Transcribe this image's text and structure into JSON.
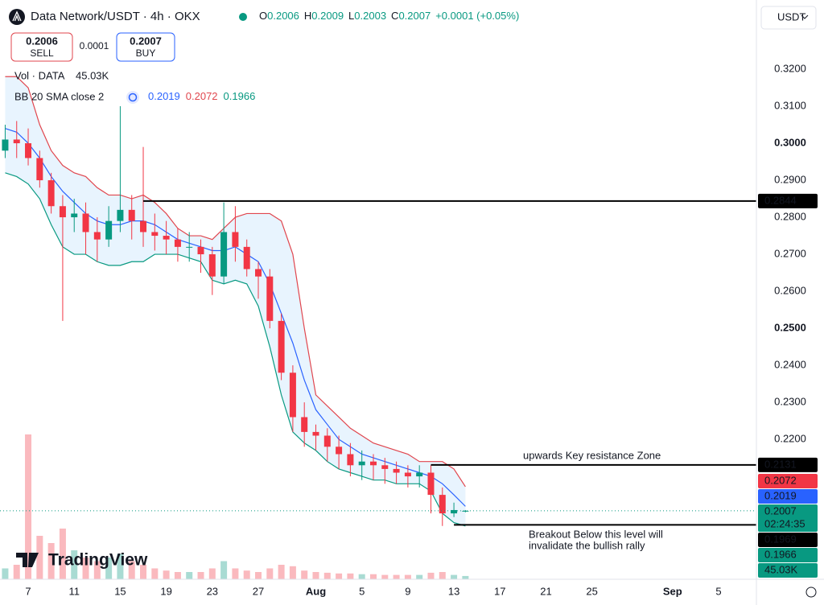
{
  "header": {
    "title": "Data Network/USDT · 4h · OKX",
    "ohlc": [
      {
        "label": "O",
        "value": 0.2006
      },
      {
        "label": "H",
        "value": 0.2009
      },
      {
        "label": "L",
        "value": 0.2003
      },
      {
        "label": "C",
        "value": 0.2007
      }
    ],
    "change": "+0.0001 (+0.05%)",
    "sell": {
      "price": 0.2006,
      "label": "SELL"
    },
    "spread": 0.0001,
    "buy": {
      "price": 0.2007,
      "label": "BUY"
    },
    "volume": {
      "label": "Vol · DATA",
      "value": "45.03K"
    },
    "bb": {
      "label": "BB 20 SMA close 2",
      "values": [
        {
          "value": 0.2019,
          "color": "#2962ff"
        },
        {
          "value": 0.2072,
          "color": "#e0464e"
        },
        {
          "value": 0.1966,
          "color": "#089981"
        }
      ]
    },
    "currency": "USDT",
    "logo": "TradingView"
  },
  "chart_data": {
    "type": "candlestick",
    "x": [
      5,
      6,
      7,
      8,
      9,
      10,
      11,
      12,
      13,
      14,
      15,
      16,
      17,
      18,
      19,
      20,
      21,
      22,
      23,
      24,
      25,
      26,
      27,
      28,
      29,
      30,
      31,
      32,
      33,
      34,
      35,
      36,
      37,
      38,
      39,
      40,
      41,
      42,
      43,
      44,
      45
    ],
    "open": [
      0.298,
      0.301,
      0.3,
      0.296,
      0.29,
      0.283,
      0.28,
      0.281,
      0.276,
      0.274,
      0.279,
      0.282,
      0.279,
      0.276,
      0.275,
      0.274,
      0.272,
      0.272,
      0.27,
      0.264,
      0.276,
      0.272,
      0.266,
      0.264,
      0.252,
      0.238,
      0.226,
      0.222,
      0.221,
      0.218,
      0.216,
      0.213,
      0.214,
      0.213,
      0.212,
      0.211,
      0.21,
      0.211,
      0.205,
      0.2,
      0.2006
    ],
    "high": [
      0.305,
      0.306,
      0.304,
      0.298,
      0.292,
      0.286,
      0.285,
      0.284,
      0.28,
      0.283,
      0.31,
      0.286,
      0.299,
      0.281,
      0.279,
      0.277,
      0.276,
      0.274,
      0.272,
      0.284,
      0.283,
      0.274,
      0.268,
      0.266,
      0.254,
      0.24,
      0.23,
      0.224,
      0.223,
      0.221,
      0.219,
      0.217,
      0.216,
      0.215,
      0.214,
      0.213,
      0.213,
      0.213,
      0.207,
      0.2029,
      0.2009
    ],
    "low": [
      0.296,
      0.296,
      0.294,
      0.288,
      0.281,
      0.252,
      0.276,
      0.27,
      0.268,
      0.272,
      0.276,
      0.274,
      0.272,
      0.271,
      0.27,
      0.268,
      0.268,
      0.265,
      0.259,
      0.262,
      0.268,
      0.264,
      0.258,
      0.25,
      0.236,
      0.222,
      0.218,
      0.217,
      0.214,
      0.212,
      0.21,
      0.209,
      0.209,
      0.208,
      0.208,
      0.207,
      0.207,
      0.2,
      0.1966,
      0.199,
      0.2003
    ],
    "close": [
      0.301,
      0.3,
      0.296,
      0.29,
      0.283,
      0.28,
      0.281,
      0.276,
      0.274,
      0.279,
      0.282,
      0.279,
      0.276,
      0.275,
      0.274,
      0.272,
      0.272,
      0.27,
      0.264,
      0.276,
      0.272,
      0.266,
      0.264,
      0.252,
      0.238,
      0.226,
      0.222,
      0.221,
      0.218,
      0.216,
      0.213,
      0.214,
      0.213,
      0.212,
      0.211,
      0.21,
      0.211,
      0.205,
      0.2,
      0.2009,
      0.2007
    ],
    "volume": [
      150000,
      200000,
      2000000,
      600000,
      500000,
      700000,
      400000,
      300000,
      250000,
      300000,
      350000,
      250000,
      200000,
      150000,
      120000,
      100000,
      100000,
      100000,
      150000,
      250000,
      150000,
      120000,
      100000,
      150000,
      200000,
      180000,
      120000,
      100000,
      90000,
      80000,
      80000,
      70000,
      70000,
      60000,
      60000,
      60000,
      60000,
      90000,
      100000,
      60000,
      45030
    ],
    "up_color": "#089981",
    "down_color": "#f23645",
    "bands": [
      {
        "color": "#e0464e",
        "values": [
          0.318,
          0.318,
          0.315,
          0.305,
          0.298,
          0.294,
          0.292,
          0.291,
          0.288,
          0.286,
          0.286,
          0.285,
          0.286,
          0.284,
          0.281,
          0.277,
          0.275,
          0.275,
          0.274,
          0.277,
          0.28,
          0.281,
          0.281,
          0.281,
          0.279,
          0.27,
          0.25,
          0.232,
          0.229,
          0.226,
          0.223,
          0.221,
          0.219,
          0.218,
          0.217,
          0.216,
          0.214,
          0.214,
          0.214,
          0.212,
          0.2072
        ]
      },
      {
        "color": "#2962ff",
        "values": [
          0.304,
          0.303,
          0.3,
          0.296,
          0.291,
          0.287,
          0.284,
          0.281,
          0.279,
          0.278,
          0.278,
          0.279,
          0.279,
          0.278,
          0.276,
          0.274,
          0.273,
          0.272,
          0.271,
          0.271,
          0.272,
          0.27,
          0.268,
          0.262,
          0.254,
          0.246,
          0.236,
          0.228,
          0.224,
          0.22,
          0.218,
          0.216,
          0.215,
          0.214,
          0.213,
          0.212,
          0.211,
          0.21,
          0.208,
          0.205,
          0.2019
        ]
      },
      {
        "color": "#089981",
        "values": [
          0.292,
          0.291,
          0.289,
          0.285,
          0.278,
          0.272,
          0.27,
          0.27,
          0.268,
          0.267,
          0.267,
          0.268,
          0.268,
          0.27,
          0.27,
          0.27,
          0.269,
          0.268,
          0.263,
          0.262,
          0.263,
          0.262,
          0.256,
          0.245,
          0.232,
          0.222,
          0.219,
          0.217,
          0.214,
          0.212,
          0.211,
          0.21,
          0.209,
          0.209,
          0.208,
          0.208,
          0.208,
          0.206,
          0.2,
          0.1975,
          0.1966
        ]
      }
    ],
    "band_fill": "#2196f3",
    "xlim": [
      4.55,
      70.29
    ],
    "ylim": [
      0.1822,
      0.3387
    ],
    "xticks": [
      7,
      11,
      15,
      19,
      23,
      27,
      {
        "value": 32,
        "label": "Aug",
        "bold": true
      },
      {
        "value": 36,
        "label": "5"
      },
      {
        "value": 40,
        "label": "9"
      },
      {
        "value": 44,
        "label": "13"
      },
      {
        "value": 48,
        "label": "17"
      },
      {
        "value": 52,
        "label": "21"
      },
      {
        "value": 56,
        "label": "25"
      },
      {
        "value": 63,
        "label": "Sep",
        "bold": true
      },
      {
        "value": 67,
        "label": "5"
      }
    ],
    "yticks": [
      {
        "value": 0.22,
        "label": "0.2200"
      },
      {
        "value": 0.23,
        "label": "0.2300"
      },
      {
        "value": 0.24,
        "label": "0.2400"
      },
      {
        "value": 0.25,
        "label": "0.2500",
        "bold": true
      },
      {
        "value": 0.26,
        "label": "0.2600"
      },
      {
        "value": 0.27,
        "label": "0.2700"
      },
      {
        "value": 0.28,
        "label": "0.2800"
      },
      {
        "value": 0.29,
        "label": "0.2900"
      },
      {
        "value": 0.3,
        "label": "0.3000",
        "bold": true
      },
      {
        "value": 0.31,
        "label": "0.3100"
      },
      {
        "value": 0.32,
        "label": "0.3200"
      }
    ],
    "grid": false,
    "levels": [
      {
        "value": 0.2844,
        "x": 17
      },
      {
        "value": 0.2131,
        "x": 42
      },
      {
        "value": 0.1969,
        "x": 44
      }
    ],
    "last_price": 0.2007,
    "price_labels": [
      {
        "value": 0.2844,
        "color": "#000000"
      },
      {
        "value": 0.2131,
        "color": "#000000"
      },
      {
        "value": 0.2072,
        "color": "#f23645"
      },
      {
        "value": 0.2019,
        "color": "#2962ff"
      },
      {
        "value": 0.2007,
        "color": "#089981",
        "sub": "02:24:35"
      },
      {
        "value": 0.1969,
        "color": "#000000"
      },
      {
        "value": 0.1966,
        "color": "#089981"
      }
    ],
    "volume_label": {
      "label": "45.03K",
      "color": "#089981"
    },
    "annotations": [
      {
        "text": "upwards Key resistance Zone"
      },
      {
        "text": "Breakout Below this level will"
      },
      {
        "text": "invalidate the bullish rally"
      }
    ],
    "annotation_color": "#c2185b"
  }
}
